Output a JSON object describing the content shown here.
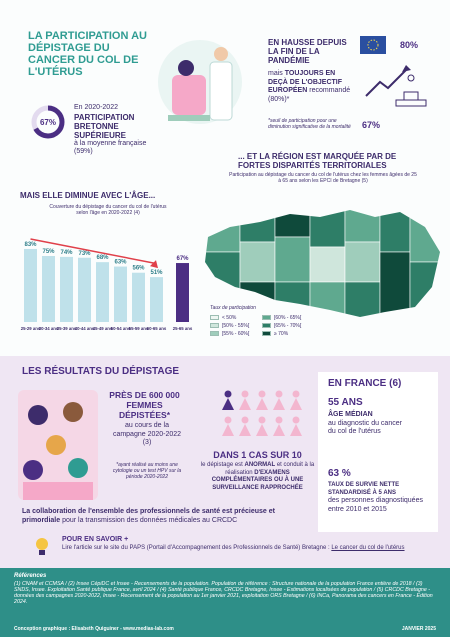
{
  "header": {
    "title": "LA PARTICIPATION AU DÉPISTAGE DU CANCER DU COL DE L'UTÉRUS"
  },
  "intro": {
    "participation": 67,
    "participation_label": "67%",
    "period": "En 2020-2022",
    "headline": "PARTICIPATION BRETONNE SUPÉRIEURE",
    "comparison": "à la moyenne française (59%)"
  },
  "trend": {
    "title": "EN HAUSSE DEPUIS LA FIN DE LA PANDÉMIE",
    "text_start": "mais",
    "text_bold": "TOUJOURS EN DEÇÀ DE L'OBJECTIF EUROPÉEN",
    "text_end": "recommandé (80%)*",
    "note": "*seuil de participation pour une diminution significative de la mortalité",
    "objective_label": "80%",
    "current_label": "67%"
  },
  "chart_data": {
    "type": "bar",
    "title": "MAIS ELLE DIMINUE AVEC L'ÂGE...",
    "subtitle": "Couverture du dépistage du cancer du col de l'utérus selon l'âge en 2020-2022 (4)",
    "categories": [
      "25-29 ans",
      "30-34 ans",
      "35-39 ans",
      "40-44 ans",
      "45-49 ans",
      "50-54 ans",
      "55-59 ans",
      "60-65 ans",
      "25-65 ans"
    ],
    "values": [
      83,
      75,
      74,
      73,
      68,
      63,
      56,
      51,
      67
    ],
    "value_labels": [
      "83%",
      "75%",
      "74%",
      "73%",
      "68%",
      "63%",
      "56%",
      "51%",
      "67%"
    ],
    "colors": [
      "#bfe1ea",
      "#bfe1ea",
      "#bfe1ea",
      "#bfe1ea",
      "#bfe1ea",
      "#bfe1ea",
      "#bfe1ea",
      "#bfe1ea",
      "#4b2e83"
    ],
    "ylim": [
      0,
      100
    ]
  },
  "map": {
    "title": "... ET LA RÉGION EST MARQUÉE PAR DE FORTES DISPARITÉS TERRITORIALES",
    "subtitle": "Participation au dépistage du cancer du col de l'utérus chez les femmes âgées de 25 à 65 ans selon les EPCI de Bretagne (5)",
    "legend_title": "Taux de participation",
    "legend": [
      {
        "label": "< 50%",
        "color": "#eef6f2"
      },
      {
        "label": "[50% - 55%[",
        "color": "#cfe6dc"
      },
      {
        "label": "[55% - 60%[",
        "color": "#9fcdbb"
      },
      {
        "label": "[60% - 65%[",
        "color": "#5fa98f"
      },
      {
        "label": "[65% - 70%[",
        "color": "#2e7e67"
      },
      {
        "label": "≥ 70%",
        "color": "#0f4a3b"
      }
    ]
  },
  "results": {
    "title": "LES RÉSULTATS DU DÉPISTAGE",
    "screened_title": "PRÈS DE 600 000 FEMMES DÉPISTÉES*",
    "screened_text": "au cours de la campagne 2020-2022 (3)",
    "screened_note": "*ayant réalisé au moins une cytologie ou un test HPV sur la période 2020-2022",
    "abnormal_title": "DANS 1 CAS SUR 10",
    "abnormal_text_start": "le dépistage est",
    "abnormal_bold": "ANORMAL",
    "abnormal_text_mid": "et conduit à la réalisation",
    "abnormal_text_end": "D'EXAMENS COMPLÉMENTAIRES OU À UNE SURVEILLANCE RAPPROCHÉE",
    "france_title": "EN FRANCE (6)",
    "median_age": "55 ANS",
    "median_label": "ÂGE MÉDIAN",
    "median_text": "au diagnostic du cancer du col de l'utérus",
    "survival": "63 %",
    "survival_label": "TAUX DE SURVIE NETTE STANDARDISÉ À 5 ANS",
    "survival_text": "des personnes diagnostiquées entre 2010 et 2015",
    "collab_bold": "La collaboration de l'ensemble des professionnels de santé est précieuse et primordiale",
    "collab_text": "pour la transmission des données médicales au CRCDC"
  },
  "more": {
    "title": "POUR EN SAVOIR +",
    "text": "Lire l'article sur le site du PAPS (Portail d'Accompagnement des Professionnels de Santé) Bretagne :",
    "link": "Le cancer du col de l'utérus"
  },
  "footer": {
    "references_title": "Références",
    "references": "(1) CNAM et CCMSA / (2) Insee CépiDC et Insee - Recensements de la population. Population de référence : Structure nationale de la population France entière de 2018 / (3) SNDS, Insee. Exploitation Santé publique France, avril 2024 / (4) Santé publique France, CRCDC Bretagne, Insee - Estimations localisées de population / (5) CRCDC Bretagne - données des campagnes 2020-2022, Insee - Recensement de la population au 1er janvier 2021, exploitation ORS Bretagne / (6) INCa, Panorama des cancers en France - Édition 2024.",
    "credit": "Conception graphique : Elisabeth Quiguiner - www.medias-lab.com",
    "date": "JANVIER 2025"
  }
}
